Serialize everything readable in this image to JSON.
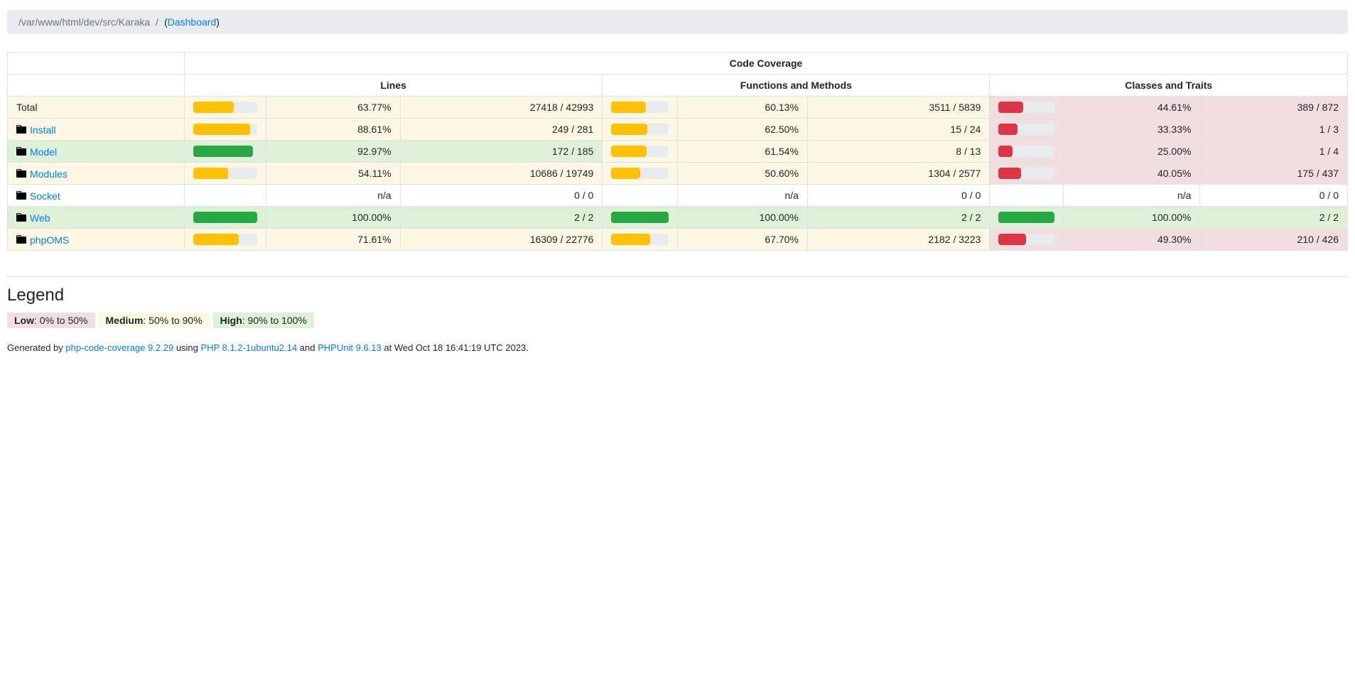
{
  "breadcrumb": {
    "path": "/var/www/html/dev/src/Karaka",
    "open_paren": "(",
    "dashboard_label": "Dashboard",
    "close_paren": ")"
  },
  "table": {
    "title": "Code Coverage",
    "sections": [
      "Lines",
      "Functions and Methods",
      "Classes and Traits"
    ],
    "rows": [
      {
        "name": "Total",
        "is_link": false,
        "lines": {
          "pct": "63.77%",
          "value": 63.77,
          "num": "27418 / 42993",
          "level": "warning"
        },
        "functions": {
          "pct": "60.13%",
          "value": 60.13,
          "num": "3511 / 5839",
          "level": "warning"
        },
        "classes": {
          "pct": "44.61%",
          "value": 44.61,
          "num": "389 / 872",
          "level": "danger"
        }
      },
      {
        "name": "Install",
        "is_link": true,
        "lines": {
          "pct": "88.61%",
          "value": 88.61,
          "num": "249 / 281",
          "level": "warning"
        },
        "functions": {
          "pct": "62.50%",
          "value": 62.5,
          "num": "15 / 24",
          "level": "warning"
        },
        "classes": {
          "pct": "33.33%",
          "value": 33.33,
          "num": "1 / 3",
          "level": "danger"
        }
      },
      {
        "name": "Model",
        "is_link": true,
        "lines": {
          "pct": "92.97%",
          "value": 92.97,
          "num": "172 / 185",
          "level": "success"
        },
        "functions": {
          "pct": "61.54%",
          "value": 61.54,
          "num": "8 / 13",
          "level": "warning"
        },
        "classes": {
          "pct": "25.00%",
          "value": 25.0,
          "num": "1 / 4",
          "level": "danger"
        }
      },
      {
        "name": "Modules",
        "is_link": true,
        "lines": {
          "pct": "54.11%",
          "value": 54.11,
          "num": "10686 / 19749",
          "level": "warning"
        },
        "functions": {
          "pct": "50.60%",
          "value": 50.6,
          "num": "1304 / 2577",
          "level": "warning"
        },
        "classes": {
          "pct": "40.05%",
          "value": 40.05,
          "num": "175 / 437",
          "level": "danger"
        }
      },
      {
        "name": "Socket",
        "is_link": true,
        "lines": {
          "pct": "n/a",
          "value": null,
          "num": "0 / 0",
          "level": "none"
        },
        "functions": {
          "pct": "n/a",
          "value": null,
          "num": "0 / 0",
          "level": "none"
        },
        "classes": {
          "pct": "n/a",
          "value": null,
          "num": "0 / 0",
          "level": "none"
        }
      },
      {
        "name": "Web",
        "is_link": true,
        "lines": {
          "pct": "100.00%",
          "value": 100,
          "num": "2 / 2",
          "level": "success"
        },
        "functions": {
          "pct": "100.00%",
          "value": 100,
          "num": "2 / 2",
          "level": "success"
        },
        "classes": {
          "pct": "100.00%",
          "value": 100,
          "num": "2 / 2",
          "level": "success"
        }
      },
      {
        "name": "phpOMS",
        "is_link": true,
        "lines": {
          "pct": "71.61%",
          "value": 71.61,
          "num": "16309 / 22776",
          "level": "warning"
        },
        "functions": {
          "pct": "67.70%",
          "value": 67.7,
          "num": "2182 / 3223",
          "level": "warning"
        },
        "classes": {
          "pct": "49.30%",
          "value": 49.3,
          "num": "210 / 426",
          "level": "danger"
        }
      }
    ]
  },
  "legend": {
    "heading": "Legend",
    "items": [
      {
        "label": "Low",
        "range": ": 0% to 50%",
        "level": "danger"
      },
      {
        "label": "Medium",
        "range": ": 50% to 90%",
        "level": "warning"
      },
      {
        "label": "High",
        "range": ": 90% to 100%",
        "level": "success"
      }
    ]
  },
  "footer": {
    "prefix": "Generated by",
    "generator_link": "php-code-coverage 9.2.29",
    "using_word": "using",
    "php_link": "PHP 8.1.2-1ubuntu2.14",
    "and_word": "and",
    "phpunit_link": "PHPUnit 9.6.13",
    "suffix": "at Wed Oct 18 16:41:19 UTC 2023."
  },
  "colors": {
    "success_bg": "#dff0d8",
    "warning_bg": "#fcf8e3",
    "danger_bg": "#f2dede",
    "success_bar": "#28a745",
    "warning_bar": "#ffc107",
    "danger_bar": "#dc3545",
    "bar_track": "#e9ecef",
    "link": "#007bff",
    "breadcrumb_bg": "#e9ecef"
  },
  "icons": {
    "folder": "folder-icon"
  }
}
